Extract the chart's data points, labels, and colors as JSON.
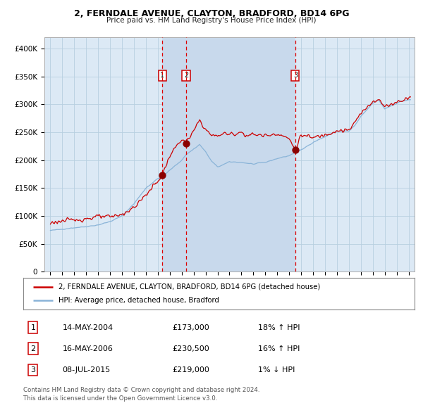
{
  "title": "2, FERNDALE AVENUE, CLAYTON, BRADFORD, BD14 6PG",
  "subtitle": "Price paid vs. HM Land Registry's House Price Index (HPI)",
  "legend_line1": "2, FERNDALE AVENUE, CLAYTON, BRADFORD, BD14 6PG (detached house)",
  "legend_line2": "HPI: Average price, detached house, Bradford",
  "sale1_date": "14-MAY-2004",
  "sale1_price": 173000,
  "sale1_hpi": "18% ↑ HPI",
  "sale1_x": 2004.37,
  "sale1_y": 173000,
  "sale2_date": "16-MAY-2006",
  "sale2_price": 230500,
  "sale2_hpi": "16% ↑ HPI",
  "sale2_x": 2006.37,
  "sale2_y": 230500,
  "sale3_date": "08-JUL-2015",
  "sale3_price": 219000,
  "sale3_hpi": "1% ↓ HPI",
  "sale3_x": 2015.52,
  "sale3_y": 219000,
  "footer": "Contains HM Land Registry data © Crown copyright and database right 2024.\nThis data is licensed under the Open Government Licence v3.0.",
  "ylim": [
    0,
    420000
  ],
  "xlim_start": 1994.5,
  "xlim_end": 2025.5,
  "hpi_color": "#8ab4d8",
  "price_color": "#cc0000",
  "bg_color": "#dce9f5",
  "grid_color": "#b8cfe0",
  "sale_dot_color": "#8b0000",
  "dashed_line_color": "#dd0000",
  "shade_color": "#c8d9ec"
}
